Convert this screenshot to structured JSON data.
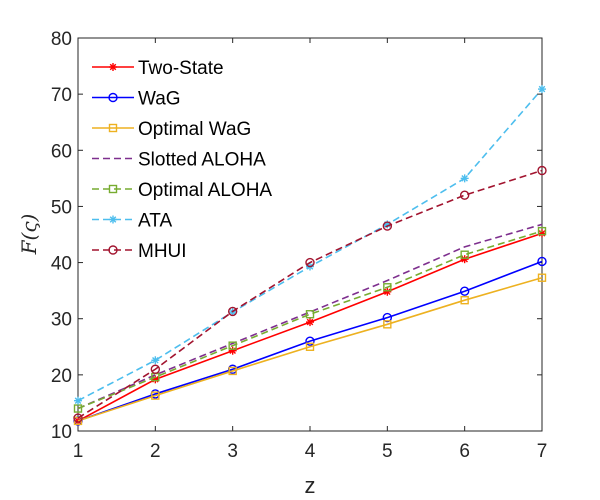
{
  "chart_data": {
    "type": "line",
    "title": "",
    "xlabel": "z",
    "ylabel": "F(ς)",
    "xlim": [
      1,
      7
    ],
    "ylim": [
      10,
      80
    ],
    "x": [
      1,
      2,
      3,
      4,
      5,
      6,
      7
    ],
    "xticks": [
      "1",
      "2",
      "3",
      "4",
      "5",
      "6",
      "7"
    ],
    "yticks": [
      "10",
      "20",
      "30",
      "40",
      "50",
      "60",
      "70",
      "80"
    ],
    "legend_position": "top-left",
    "series": [
      {
        "name": "Two-State",
        "color": "#ff0000",
        "dash": "solid",
        "marker": "asterisk",
        "values": [
          11.8,
          19.2,
          24.3,
          29.4,
          34.8,
          40.6,
          45.2
        ]
      },
      {
        "name": "WaG",
        "color": "#0000ff",
        "dash": "solid",
        "marker": "circle",
        "values": [
          11.8,
          16.6,
          21.0,
          26.0,
          30.2,
          34.9,
          40.2
        ]
      },
      {
        "name": "Optimal WaG",
        "color": "#edb120",
        "dash": "solid",
        "marker": "square",
        "values": [
          11.8,
          16.3,
          20.7,
          25.0,
          29.0,
          33.3,
          37.3
        ]
      },
      {
        "name": "Slotted ALOHA",
        "color": "#7e2f8e",
        "dash": "dashed",
        "marker": "none",
        "values": [
          14.0,
          20.0,
          25.6,
          31.2,
          36.8,
          42.8,
          46.8
        ]
      },
      {
        "name": "Optimal ALOHA",
        "color": "#77ac30",
        "dash": "dashed",
        "marker": "square",
        "values": [
          14.0,
          19.6,
          25.2,
          30.8,
          35.6,
          41.4,
          45.6
        ]
      },
      {
        "name": "ATA",
        "color": "#4dbeee",
        "dash": "dashed",
        "marker": "asterisk",
        "values": [
          15.4,
          22.6,
          31.2,
          39.3,
          46.8,
          55.0,
          70.9
        ]
      },
      {
        "name": "MHUI",
        "color": "#a2142f",
        "dash": "dashed",
        "marker": "circle",
        "values": [
          12.3,
          21.0,
          31.3,
          40.0,
          46.5,
          52.0,
          56.4
        ]
      }
    ]
  }
}
